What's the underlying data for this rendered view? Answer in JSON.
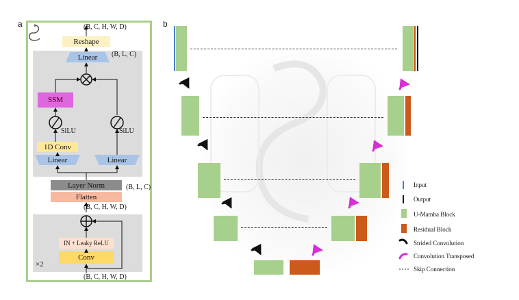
{
  "panel_a": {
    "letter": "a",
    "top_shape": "(B, C, H, W, D)",
    "reshape": "Reshape",
    "linear_top": "Linear",
    "blc_top": "(B, L, C)",
    "ssm": "SSM",
    "silu_left": "SiLU",
    "silu_right": "SiLU",
    "conv1d": "1D Conv",
    "linear_left": "Linear",
    "linear_right": "Linear",
    "layer_norm": "Layer Norm",
    "blc_mid": "(B, L, C)",
    "flatten": "Flatten",
    "mid_shape": "(B, C, H, W, D)",
    "in_leaky": "IN + Leaky ReLU",
    "conv": "Conv",
    "repeat": "×2",
    "bottom_shape": "(B, C, H, W, D)",
    "colors": {
      "border": "#a8d08d",
      "gray": "#dcdcdc",
      "linear": "#a9c4e6",
      "ssm": "#e066e0",
      "conv1d": "#ffe79a",
      "reshape": "#fdf0c4",
      "layernorm": "#8c8c8c",
      "flatten": "#f7b9a0",
      "inleaky": "#fde0d0",
      "conv": "#ffd966"
    }
  },
  "panel_b": {
    "letter": "b",
    "legend": {
      "input": "Input",
      "output": "Output",
      "umamba": "U-Mamba Block",
      "residual": "Residual Block",
      "strided": "Strided Convolution",
      "transposed": "Convolution Transposed",
      "skip": "Skip Connection"
    },
    "colors": {
      "input": "#4a7fd0",
      "output": "#111111",
      "umamba": "#a8d08d",
      "residual": "#cc5a1a",
      "strided": "#111111",
      "transposed": "#d62fd6",
      "skip": "#333333"
    }
  }
}
